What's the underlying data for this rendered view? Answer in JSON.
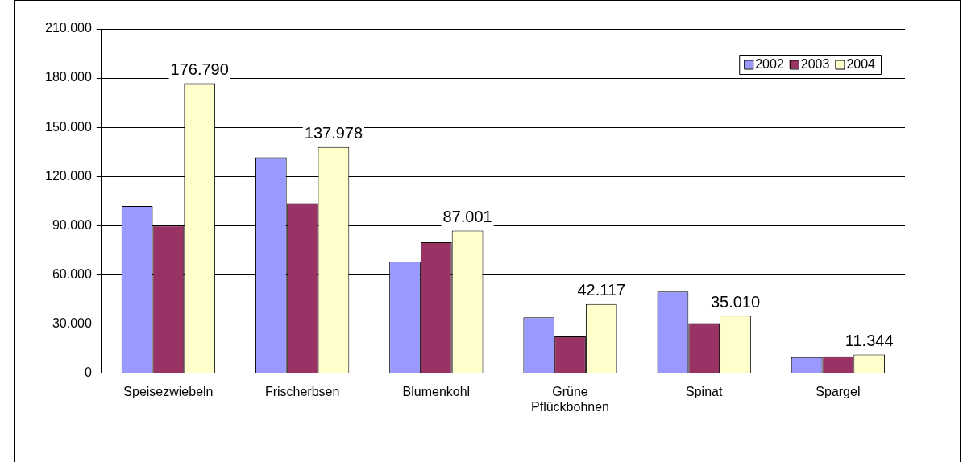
{
  "chart_data": {
    "type": "bar",
    "categories": [
      "Speisezwiebeln",
      "Frischerbsen",
      "Blumenkohl",
      "Grüne Pflückbohnen",
      "Spinat",
      "Spargel"
    ],
    "series": [
      {
        "name": "2002",
        "color": "#9999ff",
        "values": [
          102000,
          131700,
          68100,
          34000,
          49800,
          9700
        ]
      },
      {
        "name": "2003",
        "color": "#993366",
        "values": [
          90000,
          103700,
          79800,
          22400,
          30500,
          10200
        ]
      },
      {
        "name": "2004",
        "color": "#ffffcc",
        "values": [
          176790,
          137978,
          87001,
          42117,
          35010,
          11344
        ],
        "value_labels": [
          "176.790",
          "137.978",
          "87.001",
          "42.117",
          "35.010",
          "11.344"
        ]
      }
    ],
    "ylim": [
      0,
      210000
    ],
    "yticks": [
      {
        "value": 0,
        "label": "0"
      },
      {
        "value": 30000,
        "label": "30.000"
      },
      {
        "value": 60000,
        "label": "60.000"
      },
      {
        "value": 90000,
        "label": "90.000"
      },
      {
        "value": 120000,
        "label": "120.000"
      },
      {
        "value": 150000,
        "label": "150.000"
      },
      {
        "value": 180000,
        "label": "180.000"
      },
      {
        "value": 210000,
        "label": "210.000"
      }
    ],
    "grid": "y",
    "legend": "top right"
  }
}
